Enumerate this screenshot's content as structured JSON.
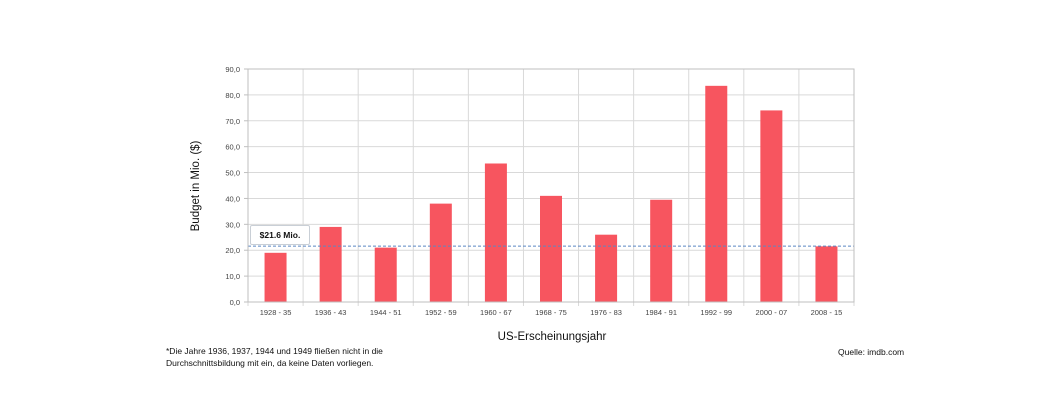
{
  "chart_data": {
    "type": "bar",
    "categories": [
      "1928 - 35",
      "1936 - 43",
      "1944 - 51",
      "1952 - 59",
      "1960 - 67",
      "1968 - 75",
      "1976 - 83",
      "1984 - 91",
      "1992 - 99",
      "2000 - 07",
      "2008 - 15"
    ],
    "values": [
      19.0,
      29.0,
      21.0,
      38.0,
      53.5,
      41.0,
      26.0,
      39.5,
      83.5,
      74.0,
      21.5
    ],
    "ylabel": "Budget in Mio. ($)",
    "xlabel": "US-Erscheinungsjahr",
    "ylim": [
      0,
      90
    ],
    "yticks": [
      "0,0",
      "10,0",
      "20,0",
      "30,0",
      "40,0",
      "50,0",
      "60,0",
      "70,0",
      "80,0",
      "90,0"
    ],
    "grid": true,
    "bar_color": "#f7555f",
    "average": {
      "value": 21.6,
      "label": "$21.6 Mio.",
      "color": "#5b86c4"
    }
  },
  "footnote": "*Die Jahre 1936, 1937, 1944 und 1949 fließen nicht in die Durchschnittsbildung mit ein, da keine Daten vorliegen.",
  "source": "Quelle: imdb.com"
}
